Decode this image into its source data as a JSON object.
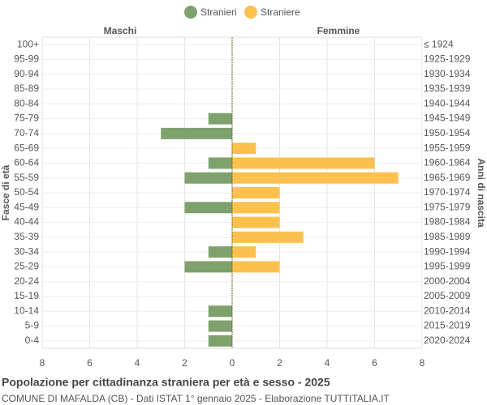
{
  "chart_data": {
    "type": "pyramid",
    "title": "Popolazione per cittadinanza straniera per età e sesso - 2025",
    "subtitle": "COMUNE DI MAFALDA (CB) - Dati ISTAT 1° gennaio 2025 - Elaborazione TUTTITALIA.IT",
    "left_header": "Maschi",
    "right_header": "Femmine",
    "y_label": "Fasce di età",
    "y2_label": "Anni di nascita",
    "categories": [
      "100+",
      "95-99",
      "90-94",
      "85-89",
      "80-84",
      "75-79",
      "70-74",
      "65-69",
      "60-64",
      "55-59",
      "50-54",
      "45-49",
      "40-44",
      "35-39",
      "30-34",
      "25-29",
      "20-24",
      "15-19",
      "10-14",
      "5-9",
      "0-4"
    ],
    "birth_years": [
      "≤ 1924",
      "1925-1929",
      "1930-1934",
      "1935-1939",
      "1940-1944",
      "1945-1949",
      "1950-1954",
      "1955-1959",
      "1960-1964",
      "1965-1969",
      "1970-1974",
      "1975-1979",
      "1980-1984",
      "1985-1989",
      "1990-1994",
      "1995-1999",
      "2000-2004",
      "2005-2009",
      "2010-2014",
      "2015-2019",
      "2020-2024"
    ],
    "series": [
      {
        "name": "Stranieri",
        "color": "#7fa16d",
        "side": "left",
        "values": [
          0,
          0,
          0,
          0,
          0,
          1,
          3,
          0,
          1,
          2,
          0,
          2,
          0,
          0,
          1,
          2,
          0,
          0,
          1,
          1,
          1
        ]
      },
      {
        "name": "Straniere",
        "color": "#fcc04f",
        "side": "right",
        "values": [
          0,
          0,
          0,
          0,
          0,
          0,
          0,
          1,
          6,
          7,
          2,
          2,
          2,
          3,
          1,
          2,
          0,
          0,
          0,
          0,
          0
        ]
      }
    ],
    "xlim": [
      -8,
      8
    ],
    "xticks": [
      {
        "value": -8,
        "label": "8"
      },
      {
        "value": -6,
        "label": "6"
      },
      {
        "value": -4,
        "label": "4"
      },
      {
        "value": -2,
        "label": "2"
      },
      0,
      2,
      4,
      6,
      8
    ],
    "grid": true
  }
}
